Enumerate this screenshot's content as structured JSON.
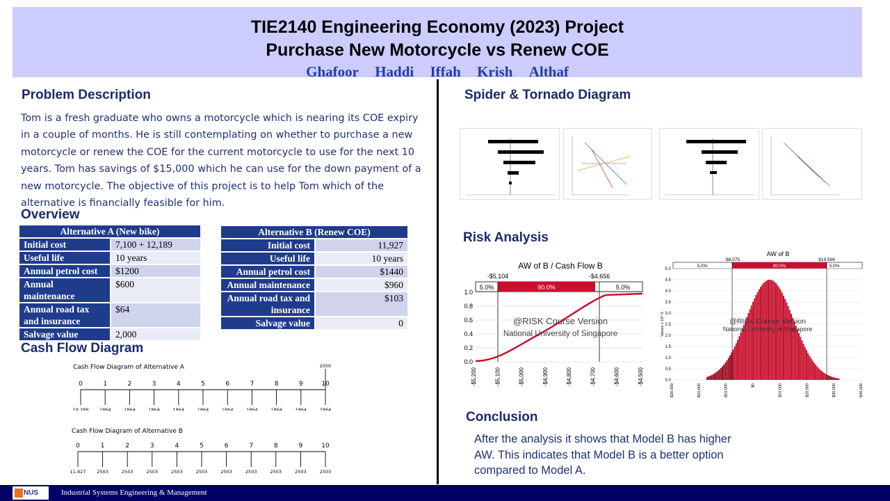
{
  "header": {
    "title_line1": "TIE2140 Engineering Economy (2023) Project",
    "title_line2": "Purchase New Motorcycle vs Renew COE",
    "authors": [
      "Ghafoor",
      "Haddi",
      "Iffah",
      "Krish",
      "Althaf"
    ]
  },
  "problem": {
    "title": "Problem Description",
    "text": "Tom is a fresh graduate who owns a motorcycle which is nearing its COE expiry in a couple of months. He is still contemplating on whether to purchase a new motorcycle or renew the COE for the current motorcycle to use for the next 10 years. Tom has savings of $15,000 which he can use for the down payment of a new motorcycle. The objective of this project is to help Tom which of the alternative is financially feasible for him."
  },
  "overview": {
    "title": "Overview",
    "alt_a": {
      "title": "Alternative A (New bike)",
      "rows": [
        {
          "k": "Initial cost",
          "v": "7,100  + 12,189"
        },
        {
          "k": "Useful life",
          "v": "10 years"
        },
        {
          "k": "Annual petrol cost",
          "v": "$1200"
        },
        {
          "k": "Annual maintenance",
          "v": "$600"
        },
        {
          "k": "Annual road tax and insurance",
          "v": "$64"
        },
        {
          "k": "Salvage value",
          "v": "2,000"
        }
      ]
    },
    "alt_b": {
      "title": "Alternative B (Renew COE)",
      "rows": [
        {
          "k": "Initial cost",
          "v": "11,927"
        },
        {
          "k": "Useful life",
          "v": "10 years"
        },
        {
          "k": "Annual petrol cost",
          "v": "$1440"
        },
        {
          "k": "Annual maintenance",
          "v": "$960"
        },
        {
          "k": "Annual road tax and insurance",
          "v": "$103"
        },
        {
          "k": "Salvage value",
          "v": "0"
        }
      ]
    }
  },
  "cashflow": {
    "title": "Cash Flow Diagram",
    "a": {
      "title": "Cash Flow Diagram of Alternative A",
      "periods": [
        "0",
        "1",
        "2",
        "3",
        "4",
        "5",
        "6",
        "7",
        "8",
        "9",
        "10"
      ],
      "values": [
        "19,289",
        "1864",
        "1864",
        "1864",
        "1864",
        "1864",
        "1864",
        "1864",
        "1864",
        "1864",
        "1864"
      ],
      "salvage": "2000"
    },
    "b": {
      "title": "Cash Flow Diagram of Alternative B",
      "periods": [
        "0",
        "1",
        "2",
        "3",
        "4",
        "5",
        "6",
        "7",
        "8",
        "9",
        "10"
      ],
      "values": [
        "11,927",
        "2503",
        "2503",
        "2503",
        "2503",
        "2503",
        "2503",
        "2503",
        "2503",
        "2503",
        "2503"
      ]
    }
  },
  "spider_tornado": {
    "title": "Spider & Tornado Diagram"
  },
  "risk": {
    "title": "Risk Analysis",
    "cdf": {
      "title": "AW of B / Cash Flow B",
      "left_value": "-$5,104",
      "right_value": "-$4,656",
      "left_pct": "5.0%",
      "mid_pct": "90.0%",
      "right_pct": "5.0%",
      "y_ticks": [
        "1.0",
        "0.8",
        "0.6",
        "0.4",
        "0.2",
        "0.0"
      ],
      "x_ticks": [
        "-$5,200",
        "-$5,100",
        "-$5,000",
        "-$4,900",
        "-$4,800",
        "-$4,700",
        "-$4,600",
        "-$4,500"
      ],
      "watermark1": "@RISK Course Version",
      "watermark2": "National University of Singapore"
    },
    "hist": {
      "title": "AW of B",
      "left_value": "-$8,575",
      "right_value": "$19,594",
      "left_pct": "5.0%",
      "mid_pct": "90.0%",
      "right_pct": "5.0%",
      "y_label": "Values x 10^-5",
      "y_ticks": [
        "5.0",
        "4.5",
        "4.0",
        "3.5",
        "3.0",
        "2.5",
        "2.0",
        "1.5",
        "1.0",
        "0.5",
        "0.0"
      ],
      "x_ticks": [
        "-$30,000",
        "-$20,000",
        "-$10,000",
        "$0",
        "$10,000",
        "$20,000",
        "$30,000",
        "$40,000"
      ],
      "watermark1": "@RISK Course Version",
      "watermark2": "National University of Singapore"
    }
  },
  "conclusion": {
    "title": "Conclusion",
    "text": "After the analysis it shows that Model B has higher AW. This indicates that Model B is a better option compared to Model A."
  },
  "footer": {
    "logo_text": "NUS",
    "text": "Industrial Systems Engineering & Management"
  },
  "colors": {
    "header_bg": "#ccccff",
    "title_blue": "#1a2a6c",
    "table_header": "#1f3b8c",
    "risk_red": "#c8102e",
    "footer_bg": "#000066"
  }
}
